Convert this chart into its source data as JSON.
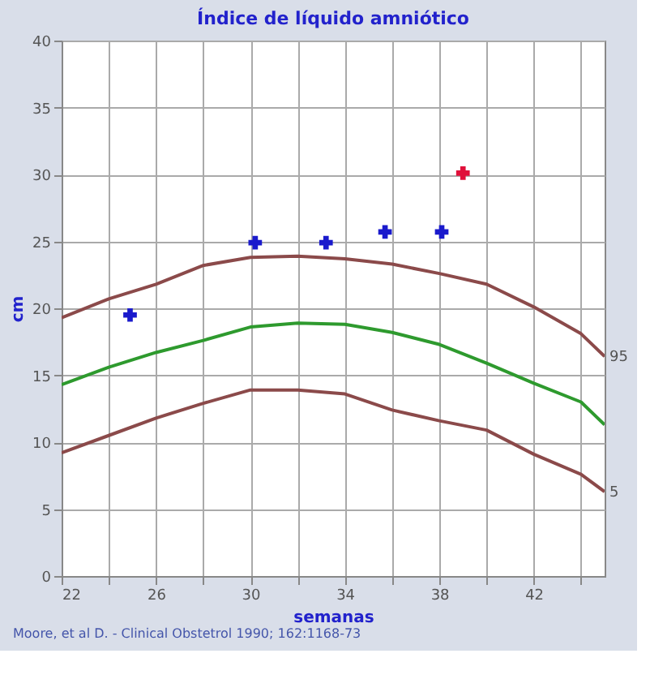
{
  "chart_data": {
    "type": "line",
    "title": "Índice de líquido amniótico",
    "xlabel": "semanas",
    "ylabel": "cm",
    "x": [
      22,
      24,
      26,
      28,
      30,
      32,
      34,
      36,
      38,
      40,
      42,
      44,
      45
    ],
    "xlim": [
      22,
      45
    ],
    "xticks": [
      22,
      {
        "value": 24,
        "label": null
      },
      26,
      {
        "value": 28,
        "label": null
      },
      30,
      {
        "value": 32,
        "label": null
      },
      34,
      {
        "value": 36,
        "label": null
      },
      38,
      {
        "value": 40,
        "label": null
      },
      42,
      {
        "value": 44,
        "label": null
      }
    ],
    "ylim": [
      0,
      40
    ],
    "yticks": [
      0,
      5,
      10,
      15,
      20,
      25,
      30,
      35,
      40
    ],
    "grid": true,
    "line_style": "solid",
    "series": [
      {
        "name": "95",
        "color": "#8b4a4a",
        "values": [
          19.3,
          20.7,
          21.8,
          23.2,
          23.8,
          23.9,
          23.7,
          23.3,
          22.6,
          21.8,
          20.1,
          18.1,
          16.4
        ]
      },
      {
        "color": "#2e9a2e",
        "values": [
          14.3,
          15.6,
          16.7,
          17.6,
          18.6,
          18.9,
          18.8,
          18.2,
          17.3,
          15.9,
          14.4,
          13.0,
          11.3
        ]
      },
      {
        "name": "5",
        "color": "#8b4a4a",
        "values": [
          9.2,
          10.5,
          11.8,
          12.9,
          13.9,
          13.9,
          13.6,
          12.4,
          11.6,
          10.9,
          9.1,
          7.6,
          6.3
        ]
      },
      {
        "type": "scatter",
        "marker": "cross",
        "color": "#1a1acc",
        "x": [
          24.9,
          30.2,
          33.2,
          35.7,
          38.1
        ],
        "values": [
          19.5,
          24.9,
          24.9,
          25.7,
          25.7
        ]
      },
      {
        "type": "scatter",
        "marker": "cross",
        "color": "#e0103a",
        "x": [
          39.0
        ],
        "values": [
          30.1
        ]
      }
    ],
    "annotations": [
      "Moore, et al D. - Clinical Obstetrol 1990; 162:1168-73"
    ]
  }
}
